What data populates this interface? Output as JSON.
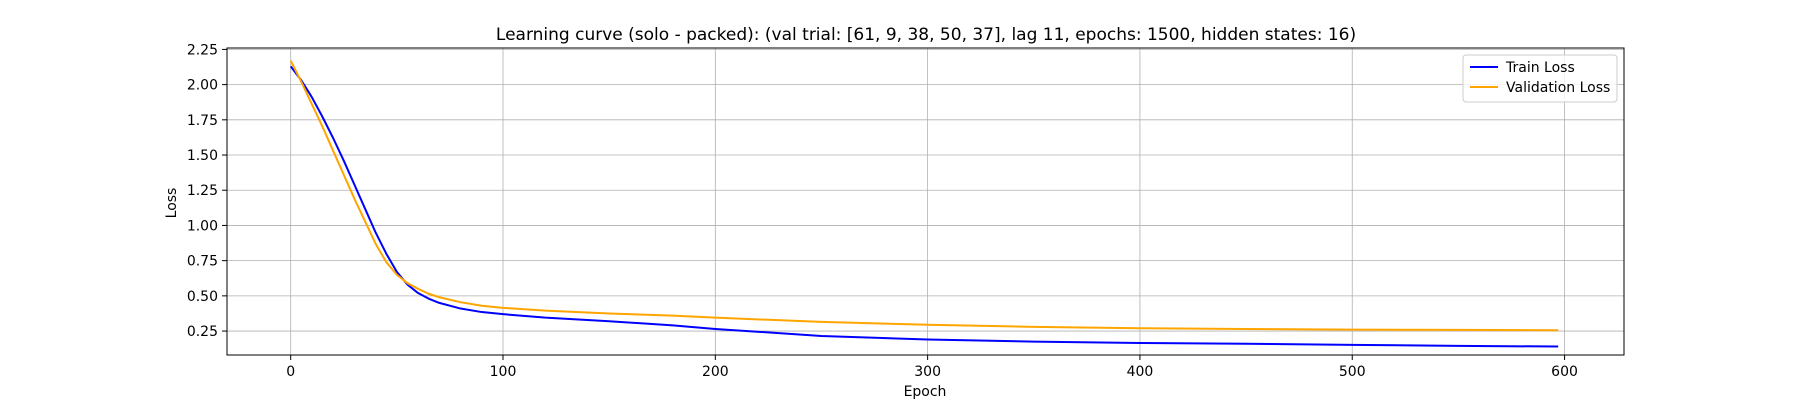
{
  "chart_data": {
    "type": "line",
    "title": "Learning curve (solo - packed): (val trial: [61, 9, 38, 50, 37], lag 11, epochs: 1500, hidden states: 16)",
    "xlabel": "Epoch",
    "ylabel": "Loss",
    "xlim": [
      -30,
      628
    ],
    "ylim": [
      0.08,
      2.26
    ],
    "xticks": [
      0,
      100,
      200,
      300,
      400,
      500,
      600
    ],
    "xtick_labels": [
      "0",
      "100",
      "200",
      "300",
      "400",
      "500",
      "600"
    ],
    "yticks": [
      0.25,
      0.5,
      0.75,
      1.0,
      1.25,
      1.5,
      1.75,
      2.0,
      2.25
    ],
    "ytick_labels": [
      "0.25",
      "0.50",
      "0.75",
      "1.00",
      "1.25",
      "1.50",
      "1.75",
      "2.00",
      "2.25"
    ],
    "grid": true,
    "legend": "top-right",
    "series": [
      {
        "name": "Train Loss",
        "color": "#0000ff",
        "x": [
          0,
          5,
          10,
          15,
          20,
          25,
          30,
          35,
          40,
          45,
          50,
          55,
          60,
          65,
          70,
          80,
          90,
          100,
          120,
          150,
          180,
          200,
          250,
          300,
          350,
          400,
          450,
          500,
          550,
          597
        ],
        "y": [
          2.13,
          2.03,
          1.91,
          1.77,
          1.62,
          1.46,
          1.29,
          1.12,
          0.95,
          0.8,
          0.67,
          0.58,
          0.52,
          0.48,
          0.45,
          0.41,
          0.385,
          0.37,
          0.345,
          0.32,
          0.29,
          0.265,
          0.215,
          0.19,
          0.175,
          0.165,
          0.16,
          0.152,
          0.145,
          0.14
        ]
      },
      {
        "name": "Validation Loss",
        "color": "#ffa500",
        "x": [
          0,
          5,
          10,
          15,
          20,
          25,
          30,
          35,
          40,
          45,
          50,
          55,
          60,
          65,
          70,
          80,
          90,
          100,
          120,
          150,
          180,
          200,
          250,
          300,
          350,
          400,
          450,
          500,
          550,
          597
        ],
        "y": [
          2.17,
          2.02,
          1.86,
          1.7,
          1.53,
          1.36,
          1.19,
          1.03,
          0.87,
          0.74,
          0.65,
          0.59,
          0.55,
          0.515,
          0.49,
          0.455,
          0.43,
          0.415,
          0.395,
          0.375,
          0.36,
          0.345,
          0.315,
          0.295,
          0.28,
          0.27,
          0.265,
          0.26,
          0.258,
          0.256
        ]
      }
    ]
  }
}
